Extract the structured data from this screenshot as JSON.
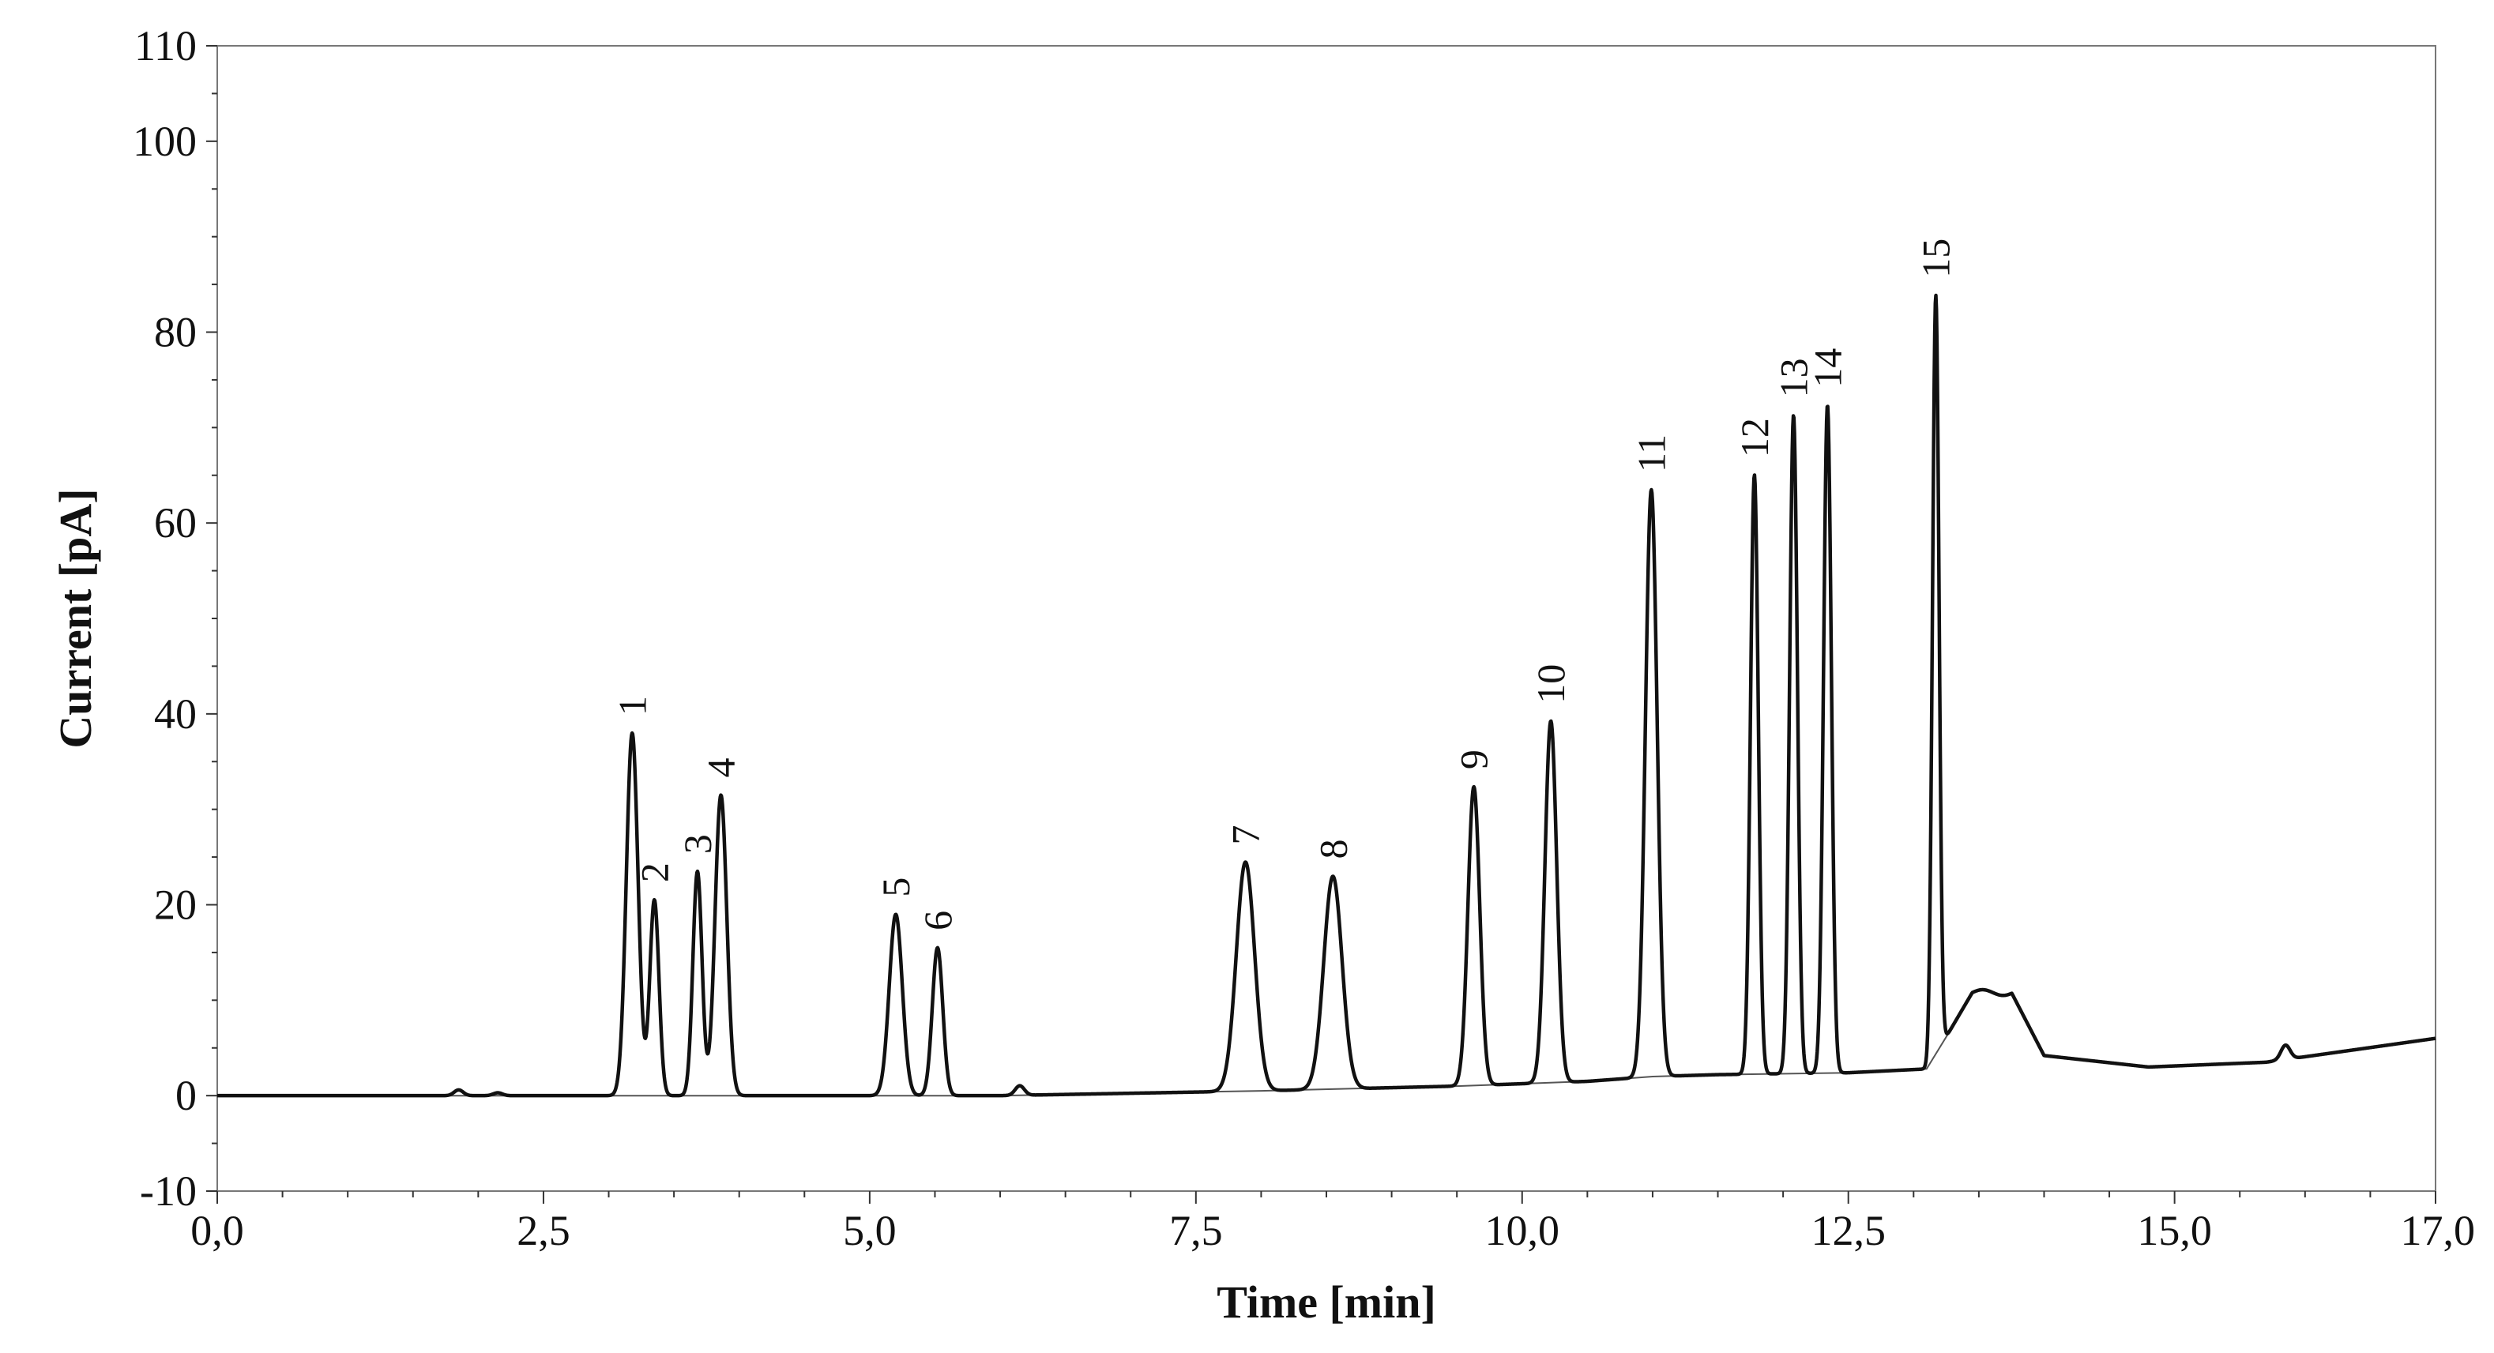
{
  "chart_data": {
    "type": "line",
    "title": "",
    "xlabel": "Time [min]",
    "ylabel": "Current [pA]",
    "xlim": [
      0,
      17
    ],
    "ylim": [
      -10,
      110
    ],
    "x_ticks": [
      0,
      2.5,
      5,
      7.5,
      10,
      12.5,
      15,
      17
    ],
    "x_tick_labels": [
      "0,0",
      "2,5",
      "5,0",
      "7,5",
      "10,0",
      "12,5",
      "15,0",
      "17,0"
    ],
    "y_ticks": [
      -10,
      0,
      20,
      40,
      60,
      80,
      100,
      110
    ],
    "y_tick_labels": [
      "-10",
      "0",
      "20",
      "40",
      "60",
      "80",
      "100",
      "110"
    ],
    "grid": false,
    "series": [
      {
        "name": "chromatogram",
        "color": "#111111"
      },
      {
        "name": "baseline",
        "color": "#555555",
        "points": [
          [
            0,
            0
          ],
          [
            4,
            0
          ],
          [
            6,
            0
          ],
          [
            8,
            0.5
          ],
          [
            9.5,
            1
          ],
          [
            10.5,
            1.5
          ],
          [
            11,
            2
          ],
          [
            11.5,
            2.2
          ],
          [
            12.5,
            2.4
          ],
          [
            13.1,
            2.8
          ],
          [
            13.4,
            9.5
          ]
        ]
      }
    ],
    "peaks": [
      {
        "label": "1",
        "time": 3.18,
        "height": 38.0,
        "width": 0.045
      },
      {
        "label": "2",
        "time": 3.35,
        "height": 20.5,
        "width": 0.035
      },
      {
        "label": "3",
        "time": 3.68,
        "height": 23.5,
        "width": 0.035
      },
      {
        "label": "4",
        "time": 3.86,
        "height": 31.5,
        "width": 0.045
      },
      {
        "label": "5",
        "time": 5.2,
        "height": 19.0,
        "width": 0.05
      },
      {
        "label": "6",
        "time": 5.52,
        "height": 15.5,
        "width": 0.04
      },
      {
        "label": "7",
        "time": 7.88,
        "height": 24.0,
        "width": 0.07
      },
      {
        "label": "8",
        "time": 8.55,
        "height": 22.3,
        "width": 0.07
      },
      {
        "label": "9",
        "time": 9.63,
        "height": 31.3,
        "width": 0.045
      },
      {
        "label": "10",
        "time": 10.22,
        "height": 37.9,
        "width": 0.045
      },
      {
        "label": "11",
        "time": 10.99,
        "height": 61.5,
        "width": 0.045
      },
      {
        "label": "12",
        "time": 11.78,
        "height": 62.8,
        "width": 0.03
      },
      {
        "label": "13",
        "time": 12.08,
        "height": 69.0,
        "width": 0.03
      },
      {
        "label": "14",
        "time": 12.34,
        "height": 70.0,
        "width": 0.03
      },
      {
        "label": "15",
        "time": 13.17,
        "height": 79.5,
        "width": 0.025
      }
    ],
    "minor_features": [
      {
        "time": 1.85,
        "height": 0.6
      },
      {
        "time": 2.15,
        "height": 0.3
      },
      {
        "time": 6.15,
        "height": 1.0
      },
      {
        "time": 15.85,
        "height": 1.5
      }
    ],
    "hump": {
      "start": 13.25,
      "plateau": 10.8,
      "end": 14.0,
      "tail_level": 3.0,
      "final_level": 6.0
    }
  }
}
